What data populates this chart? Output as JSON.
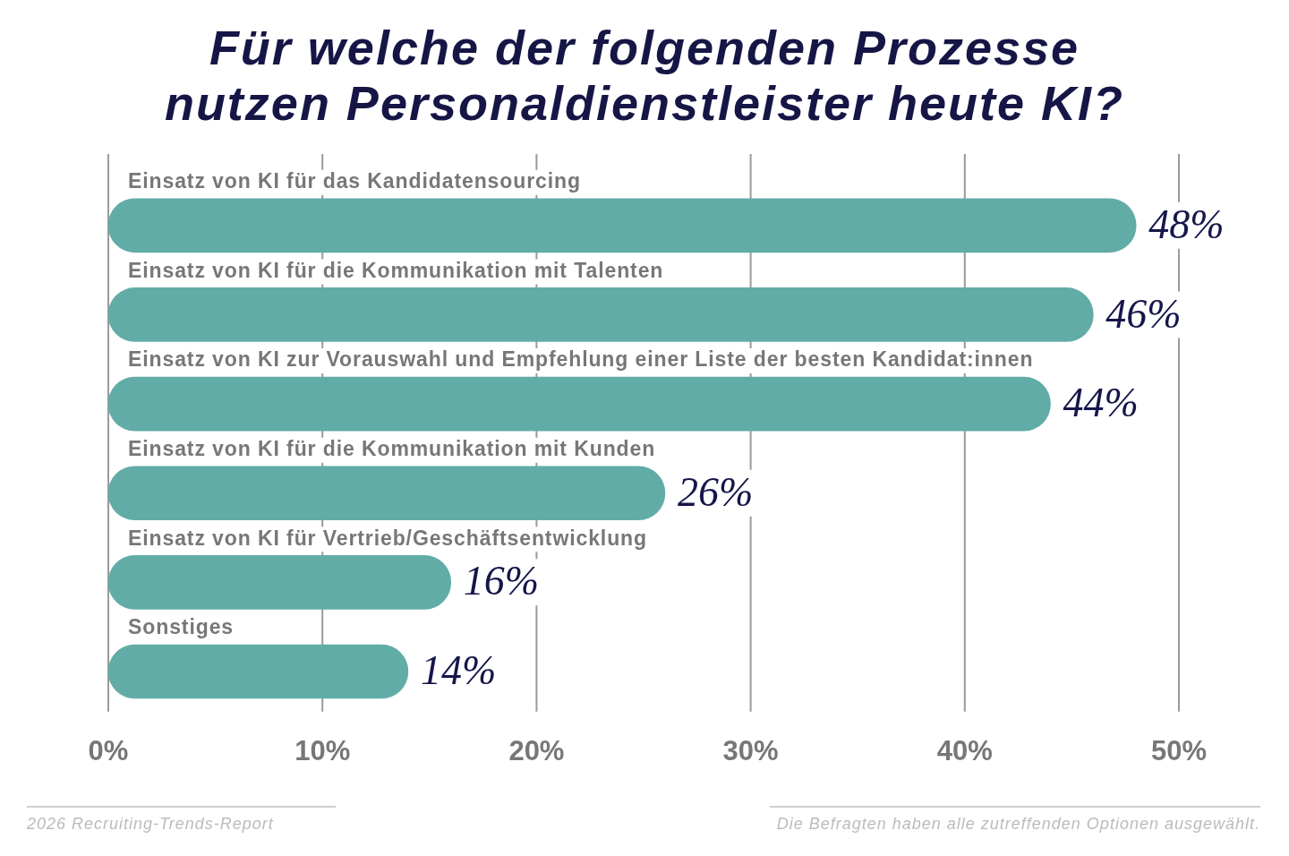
{
  "chart_data": {
    "type": "bar",
    "orientation": "horizontal",
    "title": "Für welche der folgenden Prozesse nutzen Personaldienstleister heute KI?",
    "categories": [
      "Einsatz von KI für das Kandidatensourcing",
      "Einsatz von KI für die Kommunikation mit Talenten",
      "Einsatz von KI zur Vorauswahl und Empfehlung einer Liste der besten Kandidat:innen",
      "Einsatz von KI für die Kommunikation mit Kunden",
      "Einsatz von KI für Vertrieb/Geschäftsentwicklung",
      "Sonstiges"
    ],
    "values": [
      48,
      46,
      44,
      26,
      16,
      14
    ],
    "value_labels": [
      "48%",
      "46%",
      "44%",
      "26%",
      "16%",
      "14%"
    ],
    "color": "#62aca7",
    "xlim": [
      0,
      50
    ],
    "xticks": [
      {
        "value": 0,
        "label": "0%"
      },
      {
        "value": 10,
        "label": "10%"
      },
      {
        "value": 20,
        "label": "20%"
      },
      {
        "value": 30,
        "label": "30%"
      },
      {
        "value": 40,
        "label": "40%"
      },
      {
        "value": 50,
        "label": "50%"
      }
    ],
    "grid": "x",
    "annotations": [
      "2026 Recruiting-Trends-Report",
      "Die Befragten haben alle zutreffenden Optionen ausgewählt."
    ]
  }
}
